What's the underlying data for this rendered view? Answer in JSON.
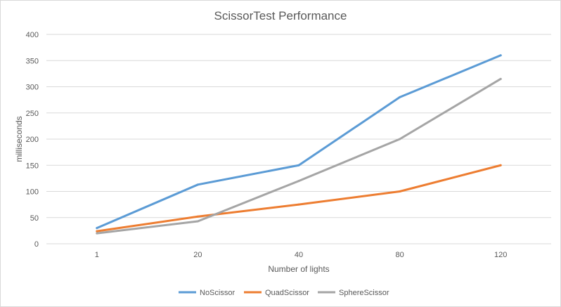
{
  "chart_data": {
    "type": "line",
    "title": "ScissorTest Performance",
    "xlabel": "Number of lights",
    "ylabel": "milliseconds",
    "categories": [
      "1",
      "20",
      "40",
      "80",
      "120"
    ],
    "ylim": [
      0,
      400
    ],
    "yticks": [
      0,
      50,
      100,
      150,
      200,
      250,
      300,
      350,
      400
    ],
    "grid": true,
    "legend_position": "bottom",
    "series": [
      {
        "name": "NoScissor",
        "color": "#5b9bd5",
        "values": [
          30,
          113,
          150,
          280,
          360
        ]
      },
      {
        "name": "QuadScissor",
        "color": "#ed7d31",
        "values": [
          24,
          52,
          75,
          100,
          150
        ]
      },
      {
        "name": "SphereScissor",
        "color": "#a5a5a5",
        "values": [
          20,
          43,
          120,
          200,
          315
        ]
      }
    ]
  }
}
